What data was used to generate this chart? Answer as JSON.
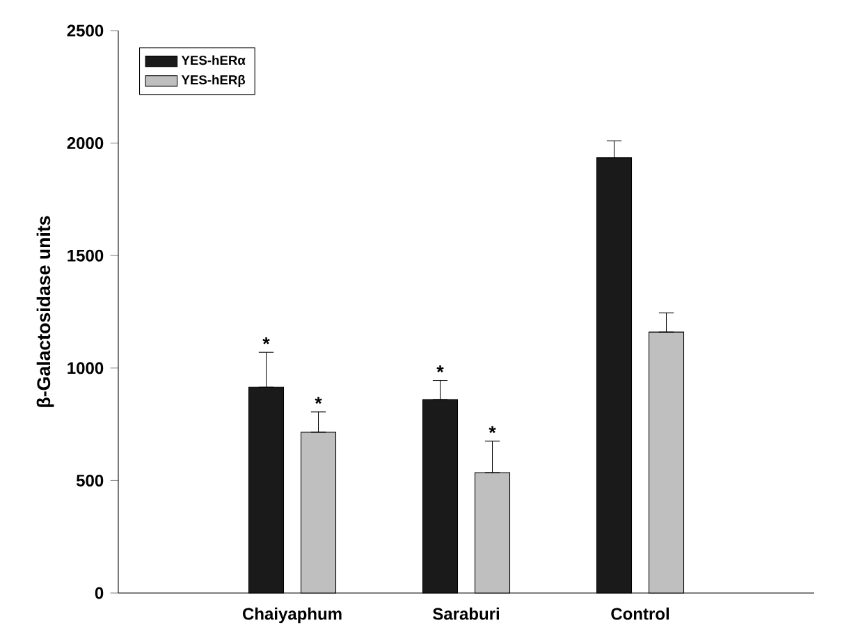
{
  "chart_data": {
    "type": "bar",
    "ylabel": "β-Galactosidase units",
    "categories": [
      "Chaiyaphum",
      "Saraburi",
      "Control"
    ],
    "series": [
      {
        "name": "YES-hERα",
        "color": "#1a1a1a",
        "values": [
          915,
          860,
          1935
        ],
        "errors": [
          [
            915,
            1070
          ],
          [
            860,
            945
          ],
          [
            1935,
            2010
          ]
        ]
      },
      {
        "name": "YES-hERβ",
        "color": "#bfbfbf",
        "values": [
          715,
          535,
          1160
        ],
        "errors": [
          [
            715,
            805
          ],
          [
            535,
            675
          ],
          [
            1160,
            1245
          ]
        ]
      }
    ],
    "ylim": [
      0,
      2500
    ],
    "yticks": [
      0,
      500,
      1000,
      1500,
      2000,
      2500
    ],
    "legend": "top left",
    "annotations": [
      "*",
      "*",
      "*",
      "*"
    ]
  }
}
